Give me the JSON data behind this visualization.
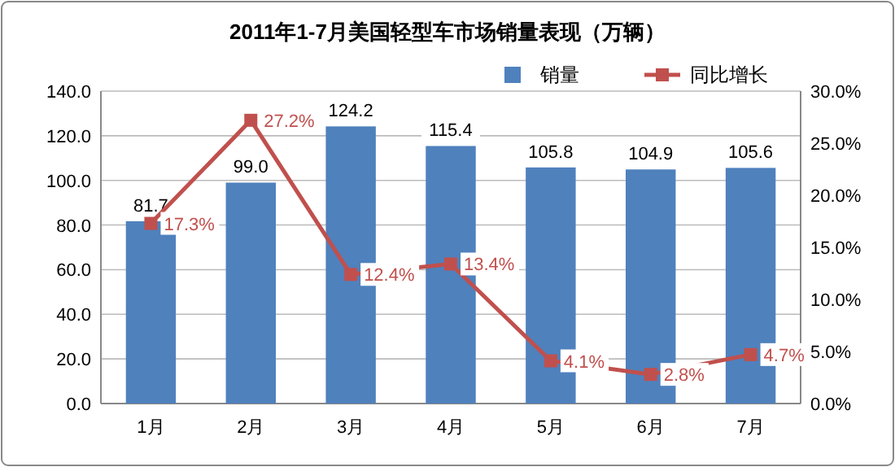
{
  "chart_data": {
    "type": "bar",
    "title": "2011年1-7月美国轻型车市场销量表现（万辆）",
    "categories": [
      "1月",
      "2月",
      "3月",
      "4月",
      "5月",
      "6月",
      "7月"
    ],
    "series": [
      {
        "name": "销量",
        "color": "#4f81bd",
        "values": [
          81.7,
          99.0,
          124.2,
          115.4,
          105.8,
          104.9,
          105.6
        ],
        "value_labels": [
          "81.7",
          "99.0",
          "124.2",
          "115.4",
          "105.8",
          "104.9",
          "105.6"
        ]
      },
      {
        "name": "同比增长",
        "type": "line",
        "axis": "y2",
        "color": "#c0504d",
        "marker": "square",
        "values": [
          17.3,
          27.2,
          12.4,
          13.4,
          4.1,
          2.8,
          4.7
        ],
        "value_labels": [
          "17.3%",
          "27.2%",
          "12.4%",
          "13.4%",
          "4.1%",
          "2.8%",
          "4.7%"
        ]
      }
    ],
    "ylim": [
      0,
      140
    ],
    "yticks": [
      {
        "value": 0,
        "label": "0.0"
      },
      {
        "value": 20,
        "label": "20.0"
      },
      {
        "value": 40,
        "label": "40.0"
      },
      {
        "value": 60,
        "label": "60.0"
      },
      {
        "value": 80,
        "label": "80.0"
      },
      {
        "value": 100,
        "label": "100.0"
      },
      {
        "value": 120,
        "label": "120.0"
      },
      {
        "value": 140,
        "label": "140.0"
      }
    ],
    "y2lim": [
      0,
      30
    ],
    "y2ticks": [
      {
        "value": 0,
        "label": "0.0%"
      },
      {
        "value": 5,
        "label": "5.0%"
      },
      {
        "value": 10,
        "label": "10.0%"
      },
      {
        "value": 15,
        "label": "15.0%"
      },
      {
        "value": 20,
        "label": "20.0%"
      },
      {
        "value": 25,
        "label": "25.0%"
      },
      {
        "value": 30,
        "label": "30.0%"
      }
    ],
    "grid": "y",
    "legend": "top right"
  }
}
